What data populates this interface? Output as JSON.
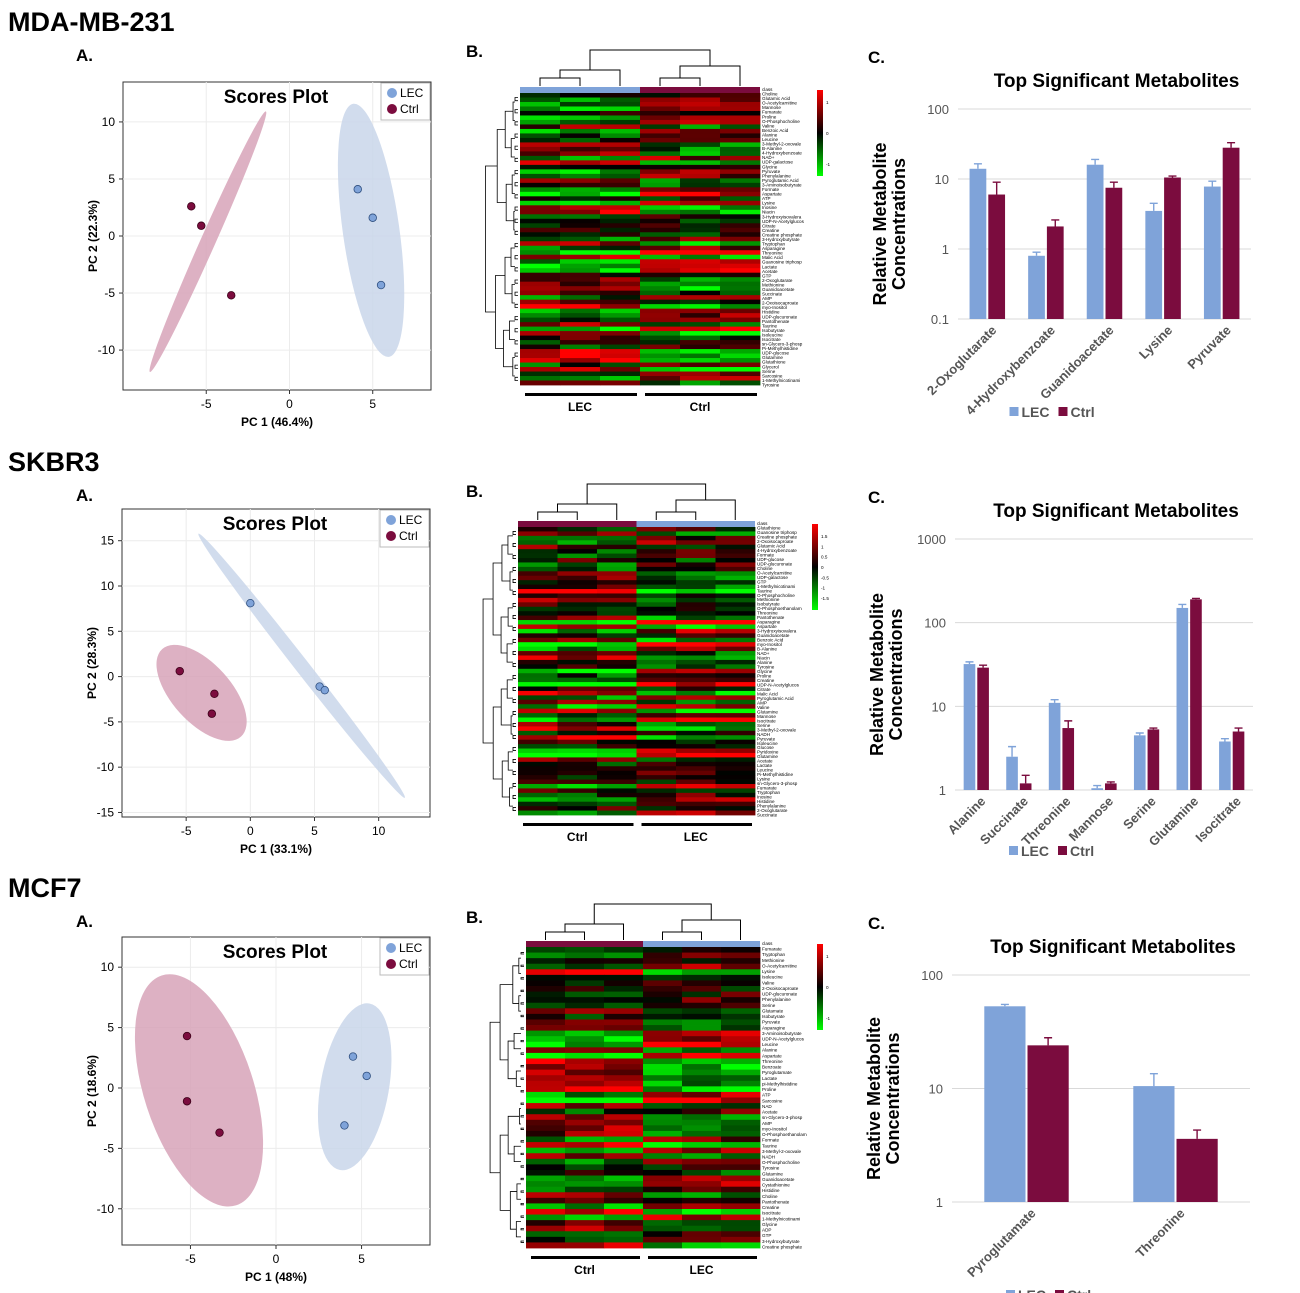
{
  "colors": {
    "lec": "#7fa3d9",
    "ctrl": "#7b0c3e",
    "lec_ellipse": "#c9d6ea",
    "ctrl_ellipse": "#d7a3b9",
    "heat_hi": "#ff0000",
    "heat_mid": "#000000",
    "heat_lo": "#00ff00"
  },
  "legend_labels": {
    "lec": "LEC",
    "ctrl": "Ctrl"
  },
  "panel_letters": {
    "a": "A.",
    "b": "B.",
    "c": "C."
  },
  "panels": [
    {
      "cell_line": "MDA-MB-231",
      "scores": {
        "title": "Scores Plot",
        "xlabel": "PC 1 (46.4%)",
        "ylabel": "PC 2 (22.3%)",
        "xlim": [
          -10,
          8.5
        ],
        "ylim": [
          -13.5,
          13.5
        ],
        "xticks": [
          -5,
          0,
          5
        ],
        "yticks": [
          -10,
          -5,
          0,
          5,
          10
        ],
        "lec_points": [
          [
            4.1,
            4.1
          ],
          [
            5.0,
            1.6
          ],
          [
            5.5,
            -4.3
          ]
        ],
        "ctrl_points": [
          [
            -5.9,
            2.6
          ],
          [
            -5.3,
            0.9
          ],
          [
            -3.5,
            -5.2
          ]
        ],
        "lec_ellipse": {
          "cx": 4.9,
          "cy": 0.5,
          "rx": 1.7,
          "ry": 11.2,
          "angle": -8
        },
        "ctrl_ellipse": {
          "cx": -4.9,
          "cy": -0.5,
          "rx": 0.45,
          "ry": 12.5,
          "angle": 24
        }
      },
      "heatmap": {
        "group_left": "LEC",
        "group_right": "Ctrl",
        "bar_left": "lec",
        "bar_right": "ctrl",
        "scale_ticks": [
          "1",
          "0",
          "-1"
        ],
        "metabolites": [
          "class",
          "Choline",
          "Glutamic Acid",
          "O-Acetylcarnitine",
          "Mannose",
          "Fumarate",
          "Proline",
          "O-Phosphocholine",
          "Valine",
          "Benzoic Acid",
          "Alanine",
          "Leucine",
          "3-Methyl-2-oxovale",
          "B-Alanine",
          "4-Hydroxybenzoate",
          "NAD+",
          "UDP-galactose",
          "Glycine",
          "Pyruvate",
          "Phenylalanine",
          "Pyroglutamic Acid",
          "3-Aminoisobutyrate",
          "Formate",
          "Aspartate",
          "ATP",
          "Lysine",
          "Inosine",
          "Niacin",
          "3-Hydroxyisovalera",
          "UDP-N-Acetylglucos",
          "Citrate",
          "Creatine",
          "Creatine phosphate",
          "3-Hydroxybutyrate",
          "Tryptophan",
          "Asparagine",
          "Threonine",
          "Malic Acid",
          "Guanosine triphosp",
          "Lactate",
          "Acetate",
          "GTP",
          "2-Oxoglutarate",
          "Methionine",
          "Guanidoacetate",
          "Succinate",
          "AMP",
          "2-Oxoisocaproate",
          "myo-Inositol",
          "Histidine",
          "UDP-glucuronate",
          "Pantothenate",
          "Taurine",
          "Isobutyrate",
          "Isoleucine",
          "Isocitrate",
          "sn-Glycero-3-phosp",
          "Pi-Methylhistidine",
          "UDP-glucose",
          "Glutamine",
          "Glutathione",
          "Glycerol",
          "Serine",
          "Sarcosine",
          "1-Methylnicotinami",
          "Tyrosine"
        ]
      },
      "bars": {
        "title": "Top Significant Metabolites",
        "ylabel_line1": "Relative Metabolite",
        "ylabel_line2": "Concentrations",
        "scale": "log",
        "ylim": [
          0.1,
          100
        ],
        "yticks": [
          "0.1",
          "1",
          "10",
          "100"
        ],
        "chart_data": {
          "type": "bar",
          "categories": [
            "2-Oxoglutarate",
            "4-Hydroxybenzoate",
            "Guanidoacetate",
            "Lysine",
            "Pyruvate"
          ],
          "series": [
            {
              "name": "LEC",
              "values": [
                14,
                0.8,
                16,
                3.5,
                7.8
              ],
              "errors": [
                2.5,
                0.1,
                3,
                1,
                1.5
              ]
            },
            {
              "name": "Ctrl",
              "values": [
                6,
                2.1,
                7.5,
                10.5,
                28
              ],
              "errors": [
                3,
                0.5,
                1.5,
                0.5,
                5
              ]
            }
          ]
        }
      }
    },
    {
      "cell_line": "SKBR3",
      "scores": {
        "title": "Scores Plot",
        "xlabel": "PC 1 (33.1%)",
        "ylabel": "PC 2 (28.3%)",
        "xlim": [
          -10,
          14
        ],
        "ylim": [
          -15.5,
          18.5
        ],
        "xticks": [
          -5,
          0,
          5,
          10
        ],
        "yticks": [
          -15,
          -10,
          -5,
          0,
          5,
          10,
          15
        ],
        "lec_points": [
          [
            0.0,
            8.1
          ],
          [
            5.4,
            -1.1
          ],
          [
            5.8,
            -1.5
          ]
        ],
        "ctrl_points": [
          [
            -5.5,
            0.6
          ],
          [
            -2.8,
            -1.9
          ],
          [
            -3.0,
            -4.1
          ]
        ],
        "lec_ellipse": {
          "cx": 4.0,
          "cy": 1.2,
          "rx": 0.55,
          "ry": 18.5,
          "angle": -38
        },
        "ctrl_ellipse": {
          "cx": -3.8,
          "cy": -1.8,
          "rx": 2.3,
          "ry": 6.5,
          "angle": -42
        }
      },
      "heatmap": {
        "group_left": "Ctrl",
        "group_right": "LEC",
        "bar_left": "ctrl",
        "bar_right": "lec",
        "scale_ticks": [
          "1.5",
          "1",
          "0.5",
          "0",
          "-0.5",
          "-1",
          "-1.5"
        ],
        "metabolites": [
          "class",
          "Glutathione",
          "Guanosine triphosp",
          "Creatine phosphate",
          "2-Oxoisocaproate",
          "Glutamic Acid",
          "4-Hydroxybenzoate",
          "Formate",
          "UDP-glucose",
          "UDP-glucuronate",
          "Choline",
          "O-Acetylcarnitine",
          "UDP-galactose",
          "GTP",
          "1-Methylnicotinami",
          "Taurine",
          "O-Phosphocholine",
          "Methionine",
          "Isobutyrate",
          "O-Phosphoethanolam",
          "Threonine",
          "Pantothenate",
          "Asparagine",
          "Aspartate",
          "3-Hydroxyisovalera",
          "Guanidoacetate",
          "Benzoic Acid",
          "myo-Inositol",
          "B-Alanine",
          "NAD+",
          "Niacin",
          "Alanine",
          "Tyrosine",
          "Glycine",
          "Proline",
          "Creatine",
          "UDP-N-Acetylglucos",
          "Citrate",
          "Malic Acid",
          "Pyroglutamic Acid",
          "AMP",
          "Valine",
          "Glutamine",
          "Mannose",
          "Isocitrate",
          "Serine",
          "3-Methyl-2-oxovale",
          "NADH",
          "Pyruvate",
          "Isoleucine",
          "Glucose",
          "Pyridoxine",
          "Glutamine",
          "Acetate",
          "Lactate",
          "Leucine",
          "Pi-Methylhistidine",
          "Lysine",
          "sn-Glycero-3-phosp",
          "Fumarate",
          "Tryptophan",
          "Inosine",
          "Histidine",
          "Phenylalanine",
          "2-Oxoglutarate",
          "Succinate"
        ]
      },
      "bars": {
        "title": "Top Significant Metabolites",
        "ylabel_line1": "Relative Metabolite",
        "ylabel_line2": "Concentrations",
        "scale": "log",
        "ylim": [
          1,
          1000
        ],
        "yticks": [
          "1",
          "10",
          "100",
          "1000"
        ],
        "chart_data": {
          "type": "bar",
          "categories": [
            "Alanine",
            "Succinate",
            "Threonine",
            "Mannose",
            "Serine",
            "Glutamine",
            "Isocitrate"
          ],
          "series": [
            {
              "name": "LEC",
              "values": [
                32,
                2.5,
                11,
                1.05,
                4.5,
                150,
                3.8
              ],
              "errors": [
                2,
                0.8,
                1,
                0.08,
                0.3,
                15,
                0.3
              ]
            },
            {
              "name": "Ctrl",
              "values": [
                29,
                1.2,
                5.5,
                1.2,
                5.3,
                190,
                5.0
              ],
              "errors": [
                2,
                0.3,
                1.2,
                0.05,
                0.2,
                5,
                0.5
              ]
            }
          ]
        }
      }
    },
    {
      "cell_line": "MCF7",
      "scores": {
        "title": "Scores Plot",
        "xlabel": "PC 1 (48%)",
        "ylabel": "PC 2 (18.6%)",
        "xlim": [
          -9,
          9
        ],
        "ylim": [
          -13,
          12.5
        ],
        "xticks": [
          -5,
          0,
          5
        ],
        "yticks": [
          -10,
          -5,
          0,
          5,
          10
        ],
        "lec_points": [
          [
            4.5,
            2.6
          ],
          [
            5.3,
            1.0
          ],
          [
            4.0,
            -3.1
          ]
        ],
        "ctrl_points": [
          [
            -5.2,
            4.3
          ],
          [
            -5.2,
            -1.1
          ],
          [
            -3.3,
            -3.7
          ]
        ],
        "lec_ellipse": {
          "cx": 4.6,
          "cy": 0.1,
          "rx": 2.0,
          "ry": 7.0,
          "angle": 10
        },
        "ctrl_ellipse": {
          "cx": -4.5,
          "cy": -0.2,
          "rx": 3.2,
          "ry": 10.0,
          "angle": -18
        }
      },
      "heatmap": {
        "group_left": "Ctrl",
        "group_right": "LEC",
        "bar_left": "ctrl",
        "bar_right": "lec",
        "scale_ticks": [
          "1",
          "0",
          "-1"
        ],
        "metabolites": [
          "class",
          "Fumarate",
          "Tryptophan",
          "Methionine",
          "O-Acetylcarnitine",
          "Lysine",
          "Isoleucine",
          "Valine",
          "2-Oxoisocaproate",
          "UDP-glucuronate",
          "Phenylalanine",
          "Serine",
          "Glutamate",
          "Isobutyrate",
          "Pyruvate",
          "Asparagine",
          "3-Aminoisobutyrate",
          "UDP-N-Acetylglucos",
          "Leucine",
          "Alanine",
          "Aspartate",
          "Threonine",
          "Benzoate",
          "Pyroglutamate",
          "Lactate",
          "pi-Methylhistidine",
          "Proline",
          "ATP",
          "Sarcosine",
          "NAD",
          "Acetate",
          "sn-Glycero-3-phosp",
          "AMP",
          "myo-Inositol",
          "O-Phosphoethanolam",
          "Formate",
          "Taurine",
          "3-Methyl-2-oxovale",
          "NADH",
          "O-Phosphocholine",
          "Tyrosine",
          "Glutamine",
          "Guanidoacetate",
          "Cystathionine",
          "Histidine",
          "Choline",
          "Pantothenate",
          "Creatine",
          "Isocitrate",
          "1-Methylnicotinami",
          "Glycine",
          "ADP",
          "GTP",
          "3-Hydroxybutyrate",
          "Creatine phosphate"
        ]
      },
      "bars": {
        "title": "Top Significant Metabolites",
        "ylabel_line1": "Relative Metabolite",
        "ylabel_line2": "Concentrations",
        "scale": "log",
        "ylim": [
          1,
          100
        ],
        "yticks": [
          "1",
          "10",
          "100"
        ],
        "chart_data": {
          "type": "bar",
          "categories": [
            "Pyroglutamate",
            "Threonine"
          ],
          "series": [
            {
              "name": "LEC",
              "values": [
                53,
                10.5
              ],
              "errors": [
                2,
                3
              ]
            },
            {
              "name": "Ctrl",
              "values": [
                24,
                3.6
              ],
              "errors": [
                4,
                0.7
              ]
            }
          ]
        }
      }
    }
  ]
}
